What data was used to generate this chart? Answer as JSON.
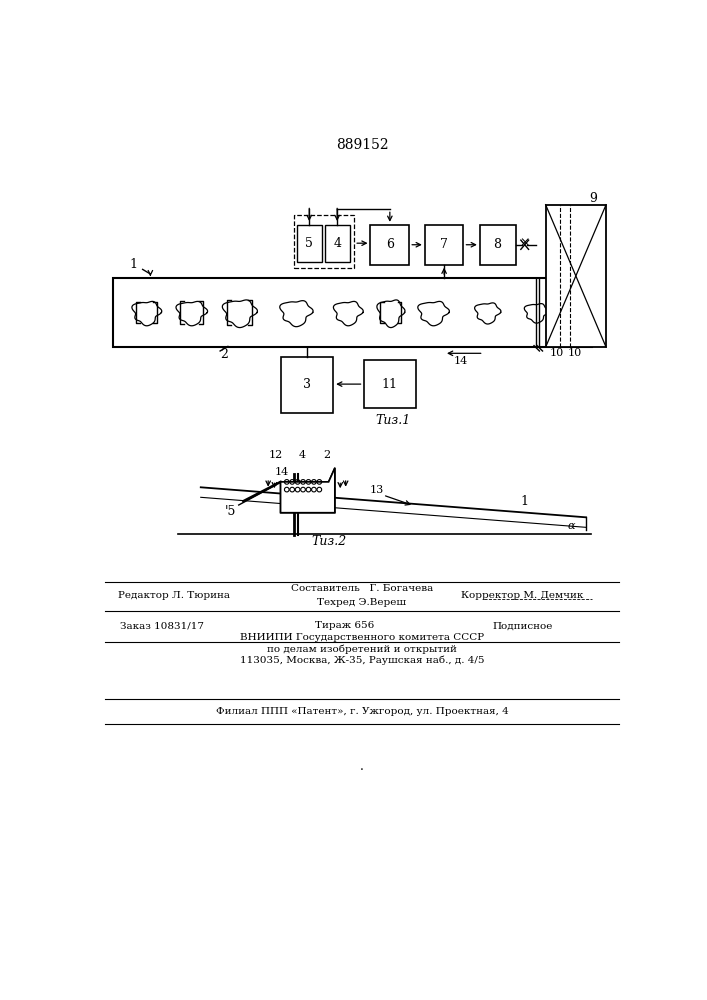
{
  "title": "889152",
  "bg_color": "#ffffff",
  "line_color": "#000000",
  "fig1_caption": "Τиз.1",
  "fig2_caption": "Τиз.2",
  "footer": {
    "editor": "Редактор Л. Тюрина",
    "composer": "Составитель   Г. Богачева",
    "techred": "Техред Э.Вереш",
    "corrector": "Корректор М. Демчик",
    "order": "Заказ 10831/17",
    "tirazh": "Тираж 656",
    "podpisnoe": "Подписное",
    "vniipи1": "ВНИИПИ Государственного комитета СССР",
    "vniipи2": "по делам изобретений и открытий",
    "address": "113035, Москва, Ж-35, Раушская наб., д. 4/5",
    "filial": "Филиал ППП «Патент», г. Ужгород, ул. Проектная, 4"
  }
}
